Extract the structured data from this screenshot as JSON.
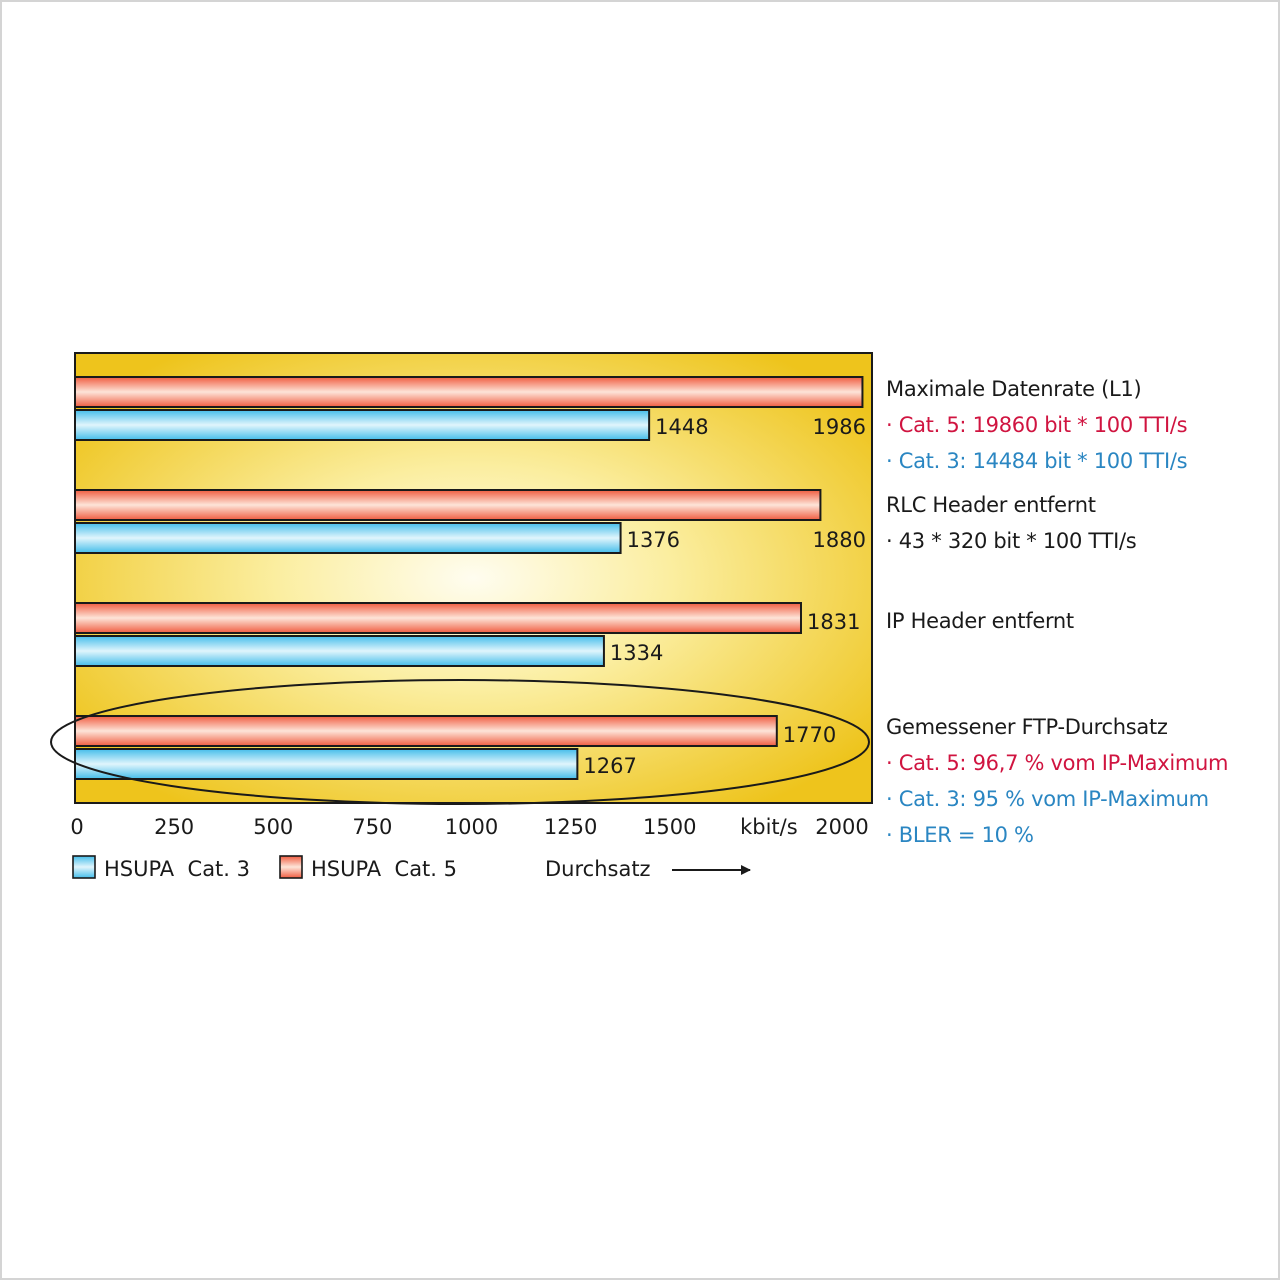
{
  "chart_data": {
    "type": "bar",
    "orientation": "horizontal",
    "categories": [
      "Maximale Datenrate (L1)",
      "RLC Header entfernt",
      "IP Header entfernt",
      "Gemessener FTP-Durchsatz"
    ],
    "series": [
      {
        "name": "HSUPA  Cat. 5",
        "color": "#f07a60",
        "values": [
          1986,
          1880,
          1831,
          1770
        ]
      },
      {
        "name": "HSUPA  Cat. 3",
        "color": "#5cc4ee",
        "values": [
          1448,
          1376,
          1334,
          1267
        ]
      }
    ],
    "value_labels": {
      "cat5": [
        "1986",
        "1880",
        "1831",
        "1770"
      ],
      "cat3": [
        "1448",
        "1376",
        "1334",
        "1267"
      ]
    },
    "x_ticks": [
      "0",
      "250",
      "500",
      "750",
      "1000",
      "1250",
      "1500",
      "kbit/s",
      "2000"
    ],
    "x_tick_values": [
      0,
      250,
      500,
      750,
      1000,
      1250,
      1500,
      1750,
      2000
    ],
    "xlim": [
      0,
      2000
    ],
    "xlabel": "Durchsatz",
    "grid": false,
    "legend_position": "bottom-left",
    "legend": [
      "HSUPA  Cat. 3",
      "HSUPA  Cat. 5"
    ],
    "highlight": "ellipse around Gemessener FTP-Durchsatz",
    "annotations": [
      {
        "heading": "Maximale Datenrate (L1)",
        "lines": [
          {
            "text": "· Cat. 5: 19860 bit * 100 TTI/s",
            "color": "#d01440"
          },
          {
            "text": "· Cat. 3: 14484 bit * 100 TTI/s",
            "color": "#2a86c2"
          }
        ]
      },
      {
        "heading": "RLC Header entfernt",
        "lines": [
          {
            "text": "· 43 * 320 bit * 100 TTI/s",
            "color": "#1a1a1a"
          }
        ]
      },
      {
        "heading": "IP Header entfernt",
        "lines": []
      },
      {
        "heading": "Gemessener FTP-Durchsatz",
        "lines": [
          {
            "text": "· Cat. 5: 96,7 % vom IP-Maximum",
            "color": "#d01440"
          },
          {
            "text": "· Cat. 3: 95 % vom IP-Maximum",
            "color": "#2a86c2"
          },
          {
            "text": "· BLER = 10 %",
            "color": "#2a86c2"
          }
        ]
      }
    ],
    "colors": {
      "background_center": "#fffbe6",
      "background_edge": "#f0c81e"
    }
  }
}
